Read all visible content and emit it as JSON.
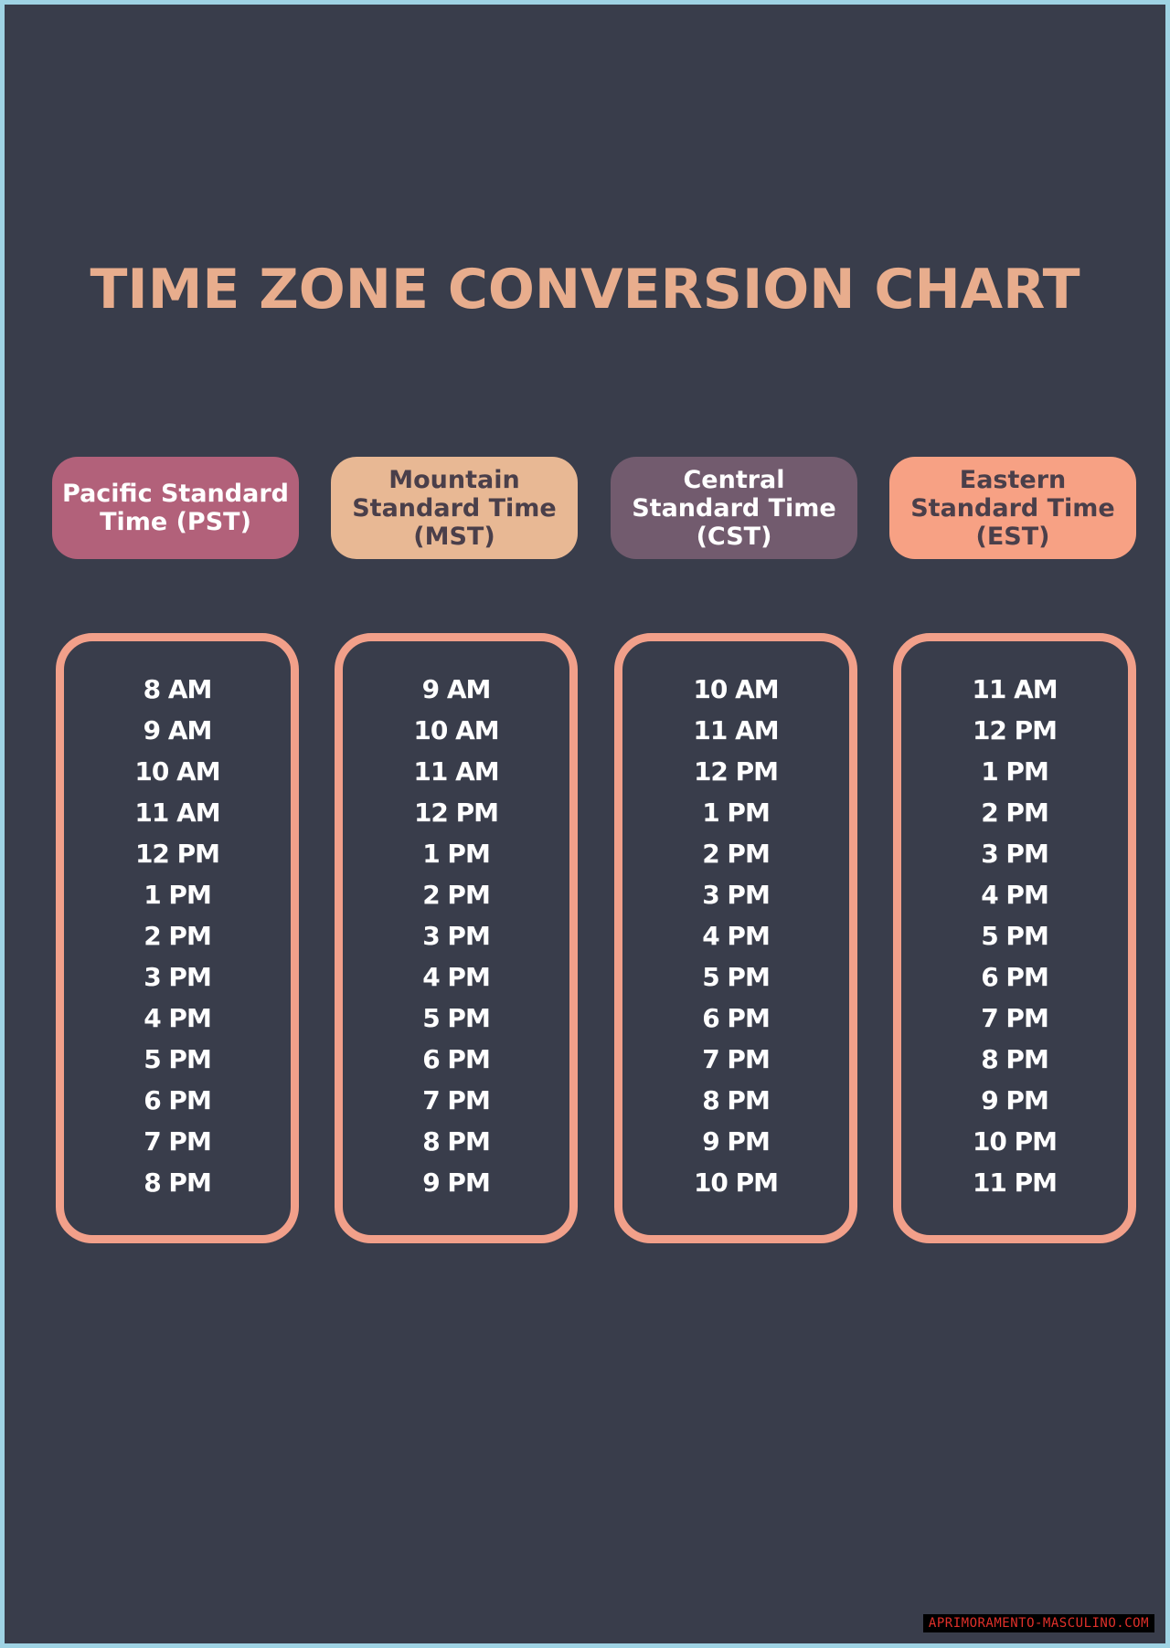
{
  "title": "TIME ZONE CONVERSION CHART",
  "colors": {
    "background": "#393d4b",
    "title": "#e8ad8d",
    "box_border": "#f2a08a",
    "frame": "#9fd3e4"
  },
  "columns": [
    {
      "header": "Pacific Standard Time (PST)",
      "header_bg": "#b2617a",
      "header_fg": "#ffffff",
      "times": [
        "8 AM",
        "9 AM",
        "10 AM",
        "11 AM",
        "12 PM",
        "1 PM",
        "2 PM",
        "3 PM",
        "4 PM",
        "5 PM",
        "6 PM",
        "7 PM",
        "8 PM"
      ]
    },
    {
      "header": "Mountain Standard Time (MST)",
      "header_bg": "#e8b894",
      "header_fg": "#4a3f4a",
      "times": [
        "9 AM",
        "10 AM",
        "11 AM",
        "12 PM",
        "1 PM",
        "2 PM",
        "3 PM",
        "4 PM",
        "5 PM",
        "6 PM",
        "7 PM",
        "8 PM",
        "9 PM"
      ]
    },
    {
      "header": "Central Standard Time (CST)",
      "header_bg": "#725b6e",
      "header_fg": "#ffffff",
      "times": [
        "10 AM",
        "11 AM",
        "12 PM",
        "1 PM",
        "2 PM",
        "3 PM",
        "4 PM",
        "5 PM",
        "6 PM",
        "7 PM",
        "8 PM",
        "9 PM",
        "10 PM"
      ]
    },
    {
      "header": "Eastern Standard Time (EST)",
      "header_bg": "#f7a184",
      "header_fg": "#4a3f4a",
      "times": [
        "11 AM",
        "12 PM",
        "1 PM",
        "2 PM",
        "3 PM",
        "4 PM",
        "5 PM",
        "6 PM",
        "7 PM",
        "8 PM",
        "9 PM",
        "10 PM",
        "11 PM"
      ]
    }
  ],
  "watermark": "APRIMORAMENTO-MASCULINO.COM"
}
